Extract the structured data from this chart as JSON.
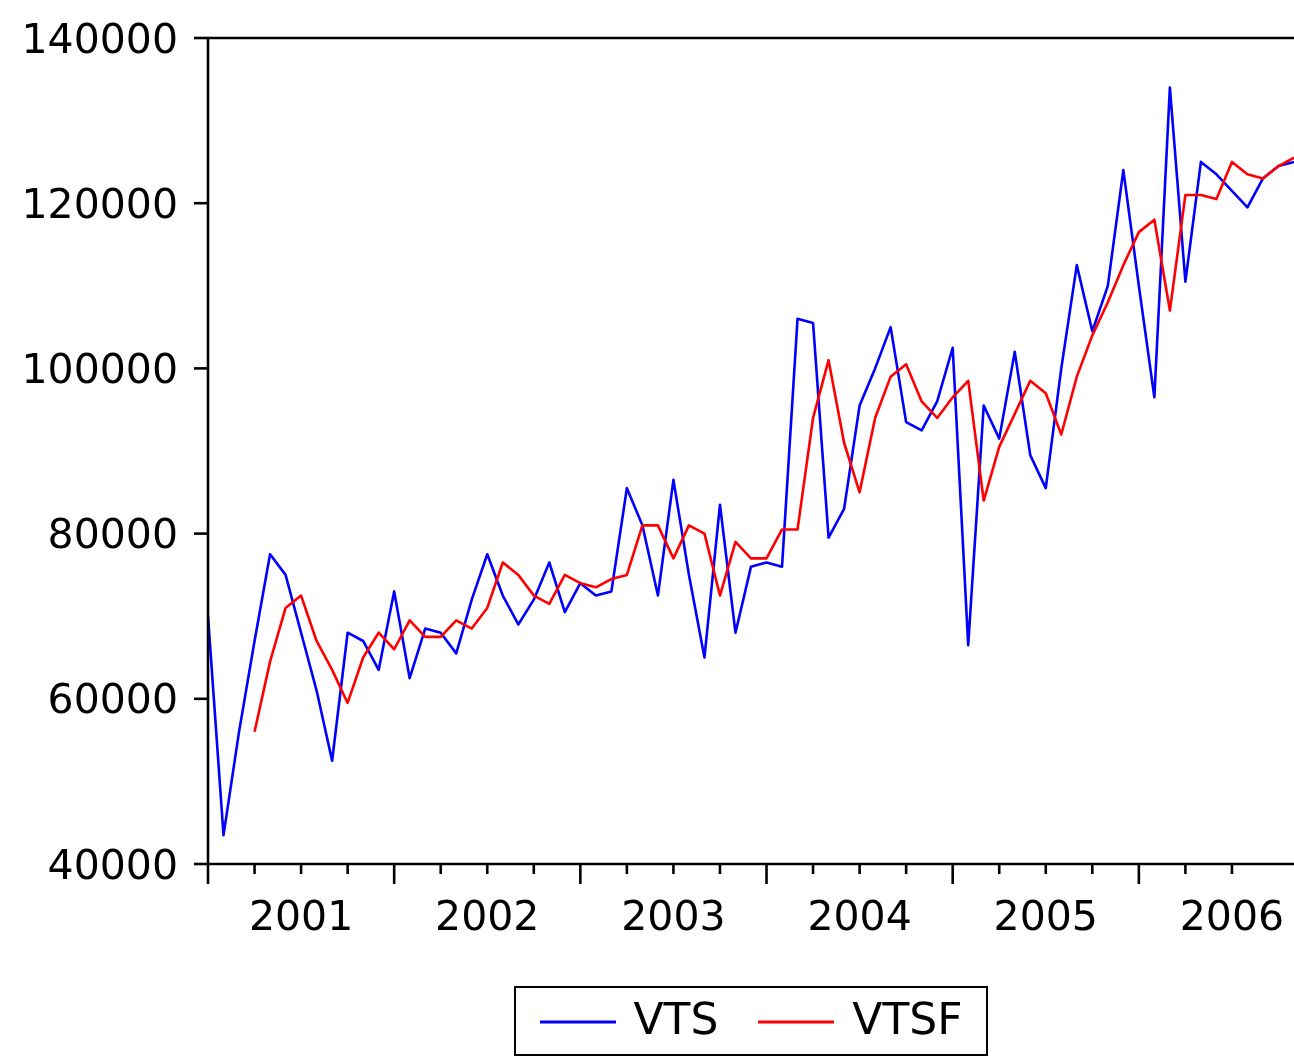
{
  "chart_data": {
    "type": "line",
    "x": [
      "2001-01",
      "2001-02",
      "2001-03",
      "2001-04",
      "2001-05",
      "2001-06",
      "2001-07",
      "2001-08",
      "2001-09",
      "2001-10",
      "2001-11",
      "2001-12",
      "2002-01",
      "2002-02",
      "2002-03",
      "2002-04",
      "2002-05",
      "2002-06",
      "2002-07",
      "2002-08",
      "2002-09",
      "2002-10",
      "2002-11",
      "2002-12",
      "2003-01",
      "2003-02",
      "2003-03",
      "2003-04",
      "2003-05",
      "2003-06",
      "2003-07",
      "2003-08",
      "2003-09",
      "2003-10",
      "2003-11",
      "2003-12",
      "2004-01",
      "2004-02",
      "2004-03",
      "2004-04",
      "2004-05",
      "2004-06",
      "2004-07",
      "2004-08",
      "2004-09",
      "2004-10",
      "2004-11",
      "2004-12",
      "2005-01",
      "2005-02",
      "2005-03",
      "2005-04",
      "2005-05",
      "2005-06",
      "2005-07",
      "2005-08",
      "2005-09",
      "2005-10",
      "2005-11",
      "2005-12",
      "2006-01",
      "2006-02",
      "2006-03",
      "2006-04",
      "2006-05",
      "2006-06",
      "2006-07",
      "2006-08",
      "2006-09",
      "2006-10",
      "2006-11"
    ],
    "xlim": [
      "2001-01",
      "2006-11"
    ],
    "xticks": [
      {
        "value": "2001-01",
        "label": null
      },
      {
        "value": "2001-04",
        "label": null
      },
      {
        "value": "2001-07",
        "label": "2001"
      },
      {
        "value": "2001-10",
        "label": null
      },
      {
        "value": "2002-01",
        "label": null
      },
      {
        "value": "2002-04",
        "label": null
      },
      {
        "value": "2002-07",
        "label": "2002"
      },
      {
        "value": "2002-10",
        "label": null
      },
      {
        "value": "2003-01",
        "label": null
      },
      {
        "value": "2003-04",
        "label": null
      },
      {
        "value": "2003-07",
        "label": "2003"
      },
      {
        "value": "2003-10",
        "label": null
      },
      {
        "value": "2004-01",
        "label": null
      },
      {
        "value": "2004-04",
        "label": null
      },
      {
        "value": "2004-07",
        "label": "2004"
      },
      {
        "value": "2004-10",
        "label": null
      },
      {
        "value": "2005-01",
        "label": null
      },
      {
        "value": "2005-04",
        "label": null
      },
      {
        "value": "2005-07",
        "label": "2005"
      },
      {
        "value": "2005-10",
        "label": null
      },
      {
        "value": "2006-01",
        "label": null
      },
      {
        "value": "2006-04",
        "label": null
      },
      {
        "value": "2006-07",
        "label": "2006"
      }
    ],
    "ylim": [
      40000,
      140000
    ],
    "yticks": [
      40000,
      60000,
      80000,
      100000,
      120000,
      140000
    ],
    "series": [
      {
        "name": "VTS",
        "color": "#0000ff",
        "values": [
          70000,
          43500,
          56000,
          67000,
          77500,
          75000,
          68000,
          61000,
          52500,
          68000,
          67000,
          63500,
          73000,
          62500,
          68500,
          68000,
          65500,
          72000,
          77500,
          72500,
          69000,
          72000,
          76500,
          70500,
          74000,
          72500,
          73000,
          85500,
          81000,
          72500,
          86500,
          75000,
          65000,
          83500,
          68000,
          76000,
          76500,
          76000,
          106000,
          105500,
          79500,
          83000,
          95500,
          100000,
          105000,
          93500,
          92500,
          96000,
          102500,
          66500,
          95500,
          91500,
          102000,
          89500,
          85500,
          100000,
          112500,
          104500,
          110000,
          124000,
          110000,
          96500,
          134000,
          110500,
          125000,
          123500,
          121500,
          119500,
          123000,
          124500,
          125000
        ]
      },
      {
        "name": "VTSF",
        "color": "#ff0000",
        "values": [
          null,
          null,
          null,
          56000,
          64500,
          71000,
          72500,
          67000,
          63500,
          59500,
          65000,
          68000,
          66000,
          69500,
          67500,
          67500,
          69500,
          68500,
          71000,
          76500,
          75000,
          72500,
          71500,
          75000,
          74000,
          73500,
          74500,
          75000,
          81000,
          81000,
          77000,
          81000,
          80000,
          72500,
          79000,
          77000,
          77000,
          80500,
          80500,
          94000,
          101000,
          91000,
          85000,
          94000,
          99000,
          100500,
          96000,
          94000,
          96500,
          98500,
          84000,
          90500,
          94500,
          98500,
          97000,
          92000,
          99000,
          104000,
          108000,
          112500,
          116500,
          118000,
          107000,
          121000,
          121000,
          120500,
          125000,
          123500,
          123000,
          124500,
          125500
        ]
      }
    ],
    "legend": "bottom"
  }
}
